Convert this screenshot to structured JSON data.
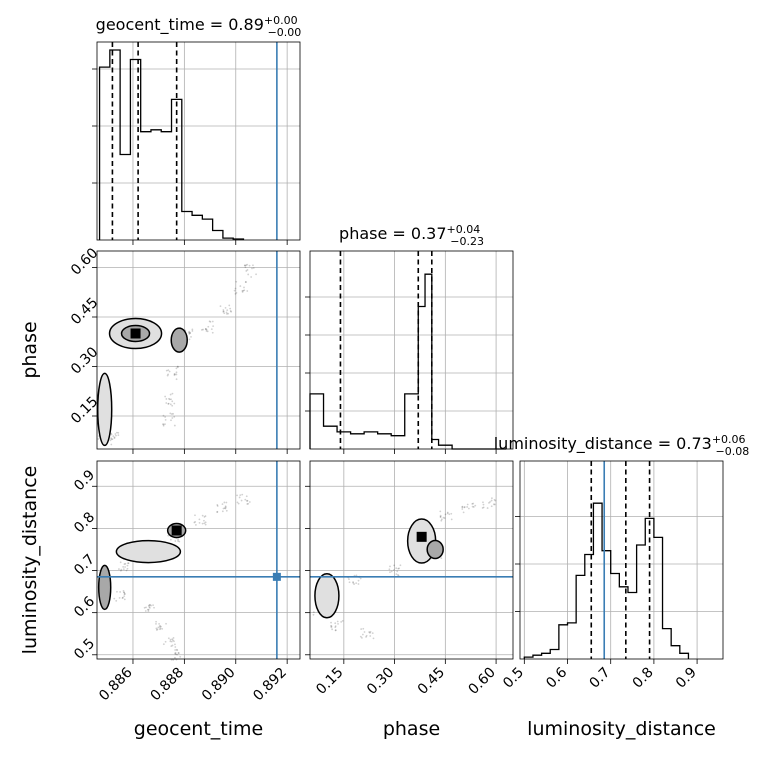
{
  "chart_data": {
    "type": "corner",
    "colors": {
      "truth": "#3a7db4",
      "hist": "#000000",
      "grid": "#b0b0b0",
      "fill_light": "#e0e0e0",
      "fill_mid": "#a8a8a8",
      "fill_dark": "#6e6e6e"
    },
    "parameters": [
      {
        "name": "geocent_time",
        "label": "geocent_time",
        "title": {
          "prefix": "geocent_time = 0.89",
          "plus": "+0.00",
          "minus": "−0.00"
        },
        "range": [
          0.8846,
          0.8925
        ],
        "ticks": [
          0.886,
          0.888,
          0.89,
          0.892
        ],
        "tick_labels": [
          "0.886",
          "0.888",
          "0.890",
          "0.892"
        ],
        "quantiles": [
          0.8852,
          0.8862,
          0.8877
        ],
        "truth": 0.8916,
        "hist": {
          "edges": [
            0.8847,
            0.8851,
            0.8855,
            0.8859,
            0.8863,
            0.8867,
            0.8871,
            0.8875,
            0.8879,
            0.8883,
            0.8887,
            0.8891,
            0.8895,
            0.8899,
            0.8903
          ],
          "counts": [
            0.91,
            1.0,
            0.45,
            0.95,
            0.57,
            0.58,
            0.57,
            0.74,
            0.15,
            0.13,
            0.11,
            0.05,
            0.01,
            0.005
          ]
        },
        "hist_ticks": [
          0.3,
          0.6,
          0.9
        ]
      },
      {
        "name": "phase",
        "label": "phase",
        "title": {
          "prefix": "phase = 0.37",
          "plus": "+0.04",
          "minus": "−0.23"
        },
        "range": [
          0.05,
          0.65
        ],
        "ticks": [
          0.15,
          0.3,
          0.45,
          0.6
        ],
        "tick_labels": [
          "0.15",
          "0.30",
          "0.45",
          "0.60"
        ],
        "quantiles": [
          0.14,
          0.37,
          0.41
        ],
        "hist": {
          "edges": [
            0.05,
            0.09,
            0.13,
            0.17,
            0.21,
            0.25,
            0.29,
            0.33,
            0.37,
            0.39,
            0.41,
            0.43,
            0.47,
            0.51,
            0.55,
            0.59,
            0.63
          ],
          "counts": [
            0.29,
            0.12,
            0.09,
            0.08,
            0.09,
            0.08,
            0.07,
            0.29,
            0.75,
            0.92,
            0.05,
            0.02,
            0.0,
            0.0,
            0.0,
            0.0
          ]
        },
        "hist_ticks": [
          0.2,
          0.4,
          0.6,
          0.8
        ]
      },
      {
        "name": "luminosity_distance",
        "label": "luminosity_distance",
        "title": {
          "prefix": "luminosity_distance = 0.73",
          "plus": "+0.06",
          "minus": "−0.08"
        },
        "range": [
          0.49,
          0.96
        ],
        "ticks": [
          0.5,
          0.6,
          0.7,
          0.8,
          0.9
        ],
        "tick_labels": [
          "0.5",
          "0.6",
          "0.7",
          "0.8",
          "0.9"
        ],
        "quantiles": [
          0.655,
          0.735,
          0.79
        ],
        "truth": 0.685,
        "hist": {
          "edges": [
            0.5,
            0.52,
            0.54,
            0.56,
            0.58,
            0.6,
            0.62,
            0.64,
            0.66,
            0.68,
            0.7,
            0.72,
            0.74,
            0.76,
            0.78,
            0.8,
            0.82,
            0.84,
            0.86,
            0.88
          ],
          "counts": [
            0.01,
            0.02,
            0.03,
            0.05,
            0.18,
            0.19,
            0.44,
            0.55,
            0.82,
            0.57,
            0.45,
            0.38,
            0.35,
            0.6,
            0.74,
            0.64,
            0.16,
            0.07,
            0.03
          ]
        },
        "hist_ticks": [
          0.25,
          0.5,
          0.75
        ]
      }
    ],
    "truth_point_lower_left": {
      "x": 0.8916,
      "y": 0.685
    },
    "truth_point_bottom_middle": {
      "x": null,
      "y": 0.685
    }
  }
}
